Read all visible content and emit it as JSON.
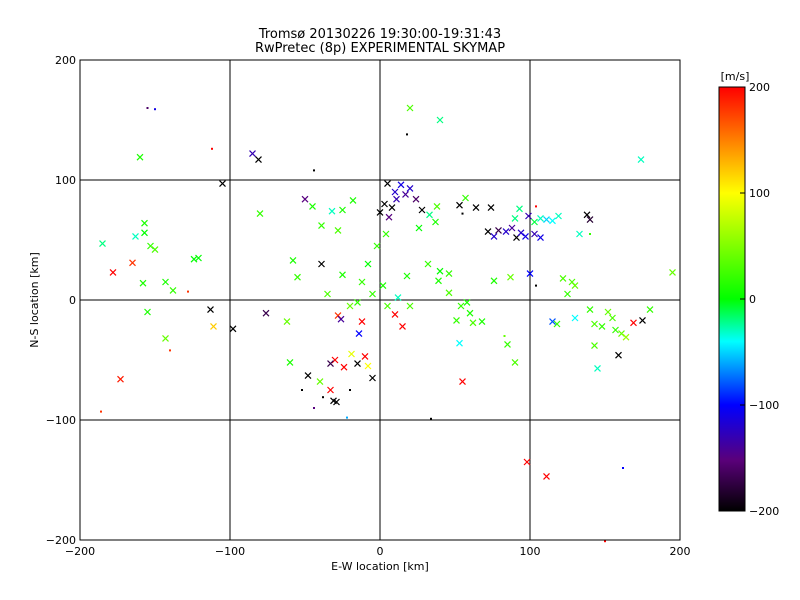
{
  "chart_data": {
    "type": "scatter",
    "title": "Tromsø 20130226 19:30:00-19:31:43",
    "subtitle": "RwPretec (8p) EXPERIMENTAL SKYMAP",
    "xlabel": "E-W location [km]",
    "ylabel": "N-S location [km]",
    "xlim": [
      -200,
      200
    ],
    "ylim": [
      -200,
      200
    ],
    "xticks": [
      -200,
      -100,
      0,
      100,
      200
    ],
    "yticks": [
      -200,
      -100,
      0,
      100,
      200
    ],
    "grid": [
      -100,
      0,
      100
    ],
    "colorbar": {
      "label": "[m/s]",
      "range": [
        -200,
        200
      ],
      "ticks": [
        -200,
        -100,
        0,
        100,
        200
      ],
      "colormap": "black-purple-blue-cyan-green-yellow-red"
    },
    "markers": [
      "cross",
      "dot"
    ],
    "points": [
      {
        "x": -185,
        "y": 47,
        "v": -20,
        "m": "x"
      },
      {
        "x": -178,
        "y": 23,
        "v": 200,
        "m": "x"
      },
      {
        "x": -173,
        "y": -66,
        "v": 190,
        "m": "x"
      },
      {
        "x": -186,
        "y": -93,
        "v": 180,
        "m": "."
      },
      {
        "x": -160,
        "y": 119,
        "v": 10,
        "m": "x"
      },
      {
        "x": -155,
        "y": 160,
        "v": -160,
        "m": "."
      },
      {
        "x": -150,
        "y": 159,
        "v": -110,
        "m": "."
      },
      {
        "x": -157,
        "y": 64,
        "v": 10,
        "m": "x"
      },
      {
        "x": -163,
        "y": 53,
        "v": -30,
        "m": "x"
      },
      {
        "x": -153,
        "y": 45,
        "v": 20,
        "m": "x"
      },
      {
        "x": -150,
        "y": 42,
        "v": 30,
        "m": "x"
      },
      {
        "x": -157,
        "y": 56,
        "v": 0,
        "m": "x"
      },
      {
        "x": -165,
        "y": 31,
        "v": 180,
        "m": "x"
      },
      {
        "x": -158,
        "y": 14,
        "v": 10,
        "m": "x"
      },
      {
        "x": -143,
        "y": 15,
        "v": 10,
        "m": "x"
      },
      {
        "x": -138,
        "y": 8,
        "v": 20,
        "m": "x"
      },
      {
        "x": -155,
        "y": -10,
        "v": 10,
        "m": "x"
      },
      {
        "x": -143,
        "y": -32,
        "v": 40,
        "m": "x"
      },
      {
        "x": -140,
        "y": -42,
        "v": 180,
        "m": "."
      },
      {
        "x": -128,
        "y": 7,
        "v": 180,
        "m": "."
      },
      {
        "x": -124,
        "y": 34,
        "v": 0,
        "m": "x"
      },
      {
        "x": -121,
        "y": 35,
        "v": 0,
        "m": "x"
      },
      {
        "x": -113,
        "y": -8,
        "v": -200,
        "m": "x"
      },
      {
        "x": -111,
        "y": -22,
        "v": 120,
        "m": "x"
      },
      {
        "x": -105,
        "y": 97,
        "v": -200,
        "m": "x"
      },
      {
        "x": -98,
        "y": -24,
        "v": -200,
        "m": "x"
      },
      {
        "x": -112,
        "y": 126,
        "v": 200,
        "m": "."
      },
      {
        "x": -85,
        "y": 122,
        "v": -130,
        "m": "x"
      },
      {
        "x": -81,
        "y": 117,
        "v": -200,
        "m": "x"
      },
      {
        "x": -80,
        "y": 72,
        "v": 20,
        "m": "x"
      },
      {
        "x": -76,
        "y": -11,
        "v": -170,
        "m": "x"
      },
      {
        "x": -62,
        "y": -18,
        "v": 40,
        "m": "x"
      },
      {
        "x": -60,
        "y": -52,
        "v": 10,
        "m": "x"
      },
      {
        "x": -58,
        "y": 33,
        "v": 10,
        "m": "x"
      },
      {
        "x": -55,
        "y": 19,
        "v": 20,
        "m": "x"
      },
      {
        "x": -50,
        "y": 84,
        "v": -150,
        "m": "x"
      },
      {
        "x": -44,
        "y": 108,
        "v": -200,
        "m": "."
      },
      {
        "x": -45,
        "y": 78,
        "v": 10,
        "m": "x"
      },
      {
        "x": -48,
        "y": -63,
        "v": -200,
        "m": "x"
      },
      {
        "x": -52,
        "y": -75,
        "v": -200,
        "m": "."
      },
      {
        "x": -40,
        "y": -68,
        "v": 40,
        "m": "x"
      },
      {
        "x": -33,
        "y": -75,
        "v": 200,
        "m": "x"
      },
      {
        "x": -31,
        "y": -84,
        "v": -200,
        "m": "x"
      },
      {
        "x": -29,
        "y": -85,
        "v": -200,
        "m": "x"
      },
      {
        "x": -38,
        "y": -81,
        "v": -200,
        "m": "."
      },
      {
        "x": -44,
        "y": -90,
        "v": -150,
        "m": "."
      },
      {
        "x": -22,
        "y": -98,
        "v": -60,
        "m": "."
      },
      {
        "x": -20,
        "y": -75,
        "v": -200,
        "m": "."
      },
      {
        "x": -39,
        "y": 30,
        "v": -200,
        "m": "x"
      },
      {
        "x": -39,
        "y": 62,
        "v": 20,
        "m": "x"
      },
      {
        "x": -32,
        "y": 74,
        "v": -30,
        "m": "x"
      },
      {
        "x": -28,
        "y": 58,
        "v": 30,
        "m": "x"
      },
      {
        "x": -25,
        "y": 75,
        "v": 10,
        "m": "x"
      },
      {
        "x": -18,
        "y": 83,
        "v": 10,
        "m": "x"
      },
      {
        "x": -25,
        "y": 21,
        "v": 10,
        "m": "x"
      },
      {
        "x": -35,
        "y": 5,
        "v": 30,
        "m": "x"
      },
      {
        "x": -28,
        "y": -13,
        "v": 180,
        "m": "x"
      },
      {
        "x": -26,
        "y": -16,
        "v": -140,
        "m": "x"
      },
      {
        "x": -30,
        "y": -50,
        "v": 200,
        "m": "x"
      },
      {
        "x": -33,
        "y": -53,
        "v": -170,
        "m": "x"
      },
      {
        "x": -24,
        "y": -56,
        "v": 200,
        "m": "x"
      },
      {
        "x": -19,
        "y": -45,
        "v": 90,
        "m": "x"
      },
      {
        "x": -15,
        "y": -53,
        "v": -200,
        "m": "x"
      },
      {
        "x": -10,
        "y": -47,
        "v": 200,
        "m": "x"
      },
      {
        "x": -14,
        "y": -28,
        "v": -100,
        "m": "x"
      },
      {
        "x": -12,
        "y": -18,
        "v": 200,
        "m": "x"
      },
      {
        "x": -20,
        "y": -5,
        "v": 40,
        "m": "x"
      },
      {
        "x": -8,
        "y": 30,
        "v": 0,
        "m": "x"
      },
      {
        "x": -2,
        "y": 45,
        "v": 20,
        "m": "x"
      },
      {
        "x": 4,
        "y": 55,
        "v": 20,
        "m": "x"
      },
      {
        "x": 6,
        "y": 69,
        "v": -150,
        "m": "x"
      },
      {
        "x": 0,
        "y": 73,
        "v": -200,
        "m": "x"
      },
      {
        "x": 3,
        "y": 80,
        "v": -200,
        "m": "x"
      },
      {
        "x": 8,
        "y": 77,
        "v": -200,
        "m": "x"
      },
      {
        "x": 5,
        "y": 97,
        "v": -200,
        "m": "x"
      },
      {
        "x": 10,
        "y": 90,
        "v": -120,
        "m": "x"
      },
      {
        "x": 14,
        "y": 96,
        "v": -110,
        "m": "x"
      },
      {
        "x": 17,
        "y": 88,
        "v": -140,
        "m": "x"
      },
      {
        "x": 20,
        "y": 93,
        "v": -120,
        "m": "x"
      },
      {
        "x": 24,
        "y": 84,
        "v": -160,
        "m": "x"
      },
      {
        "x": 11,
        "y": 84,
        "v": -130,
        "m": "x"
      },
      {
        "x": 20,
        "y": 160,
        "v": 30,
        "m": "x"
      },
      {
        "x": 18,
        "y": 138,
        "v": -200,
        "m": "."
      },
      {
        "x": 40,
        "y": 150,
        "v": -20,
        "m": "x"
      },
      {
        "x": 28,
        "y": 75,
        "v": -200,
        "m": "x"
      },
      {
        "x": 33,
        "y": 71,
        "v": -20,
        "m": "x"
      },
      {
        "x": 38,
        "y": 78,
        "v": 30,
        "m": "x"
      },
      {
        "x": 37,
        "y": 65,
        "v": 10,
        "m": "x"
      },
      {
        "x": 26,
        "y": 60,
        "v": 0,
        "m": "x"
      },
      {
        "x": 32,
        "y": 30,
        "v": 20,
        "m": "x"
      },
      {
        "x": 40,
        "y": 24,
        "v": 0,
        "m": "x"
      },
      {
        "x": 46,
        "y": 22,
        "v": 20,
        "m": "x"
      },
      {
        "x": 39,
        "y": 16,
        "v": 10,
        "m": "x"
      },
      {
        "x": 46,
        "y": 6,
        "v": 30,
        "m": "x"
      },
      {
        "x": 54,
        "y": -5,
        "v": 20,
        "m": "x"
      },
      {
        "x": 51,
        "y": -17,
        "v": 20,
        "m": "x"
      },
      {
        "x": 58,
        "y": -2,
        "v": 10,
        "m": "x"
      },
      {
        "x": 53,
        "y": -36,
        "v": -40,
        "m": "x"
      },
      {
        "x": 55,
        "y": -68,
        "v": 200,
        "m": "x"
      },
      {
        "x": 53,
        "y": 79,
        "v": -200,
        "m": "x"
      },
      {
        "x": 55,
        "y": 72,
        "v": -200,
        "m": "."
      },
      {
        "x": 57,
        "y": 85,
        "v": 20,
        "m": "x"
      },
      {
        "x": 64,
        "y": 77,
        "v": -200,
        "m": "x"
      },
      {
        "x": 60,
        "y": -11,
        "v": 10,
        "m": "x"
      },
      {
        "x": 62,
        "y": -19,
        "v": 30,
        "m": "x"
      },
      {
        "x": 68,
        "y": -18,
        "v": 10,
        "m": "x"
      },
      {
        "x": 72,
        "y": 57,
        "v": -200,
        "m": "x"
      },
      {
        "x": 76,
        "y": 53,
        "v": -120,
        "m": "x"
      },
      {
        "x": 79,
        "y": 58,
        "v": -170,
        "m": "x"
      },
      {
        "x": 74,
        "y": 77,
        "v": -200,
        "m": "x"
      },
      {
        "x": 84,
        "y": 57,
        "v": -120,
        "m": "x"
      },
      {
        "x": 88,
        "y": 60,
        "v": -140,
        "m": "x"
      },
      {
        "x": 91,
        "y": 52,
        "v": -200,
        "m": "x"
      },
      {
        "x": 94,
        "y": 56,
        "v": -120,
        "m": "x"
      },
      {
        "x": 97,
        "y": 53,
        "v": -110,
        "m": "x"
      },
      {
        "x": 90,
        "y": 68,
        "v": -20,
        "m": "x"
      },
      {
        "x": 93,
        "y": 76,
        "v": -20,
        "m": "x"
      },
      {
        "x": 99,
        "y": 70,
        "v": -130,
        "m": "x"
      },
      {
        "x": 103,
        "y": 65,
        "v": -10,
        "m": "x"
      },
      {
        "x": 107,
        "y": 68,
        "v": -30,
        "m": "x"
      },
      {
        "x": 111,
        "y": 67,
        "v": -50,
        "m": "x"
      },
      {
        "x": 115,
        "y": 66,
        "v": -40,
        "m": "x"
      },
      {
        "x": 119,
        "y": 70,
        "v": -30,
        "m": "x"
      },
      {
        "x": 104,
        "y": 78,
        "v": 200,
        "m": "."
      },
      {
        "x": 103,
        "y": 55,
        "v": -130,
        "m": "x"
      },
      {
        "x": 107,
        "y": 52,
        "v": -110,
        "m": "x"
      },
      {
        "x": 100,
        "y": 22,
        "v": -100,
        "m": "x"
      },
      {
        "x": 104,
        "y": 12,
        "v": -200,
        "m": "."
      },
      {
        "x": 87,
        "y": 19,
        "v": 40,
        "m": "x"
      },
      {
        "x": 76,
        "y": 16,
        "v": 10,
        "m": "x"
      },
      {
        "x": 83,
        "y": -30,
        "v": 40,
        "m": "."
      },
      {
        "x": 90,
        "y": -52,
        "v": 30,
        "m": "x"
      },
      {
        "x": 85,
        "y": -37,
        "v": 20,
        "m": "x"
      },
      {
        "x": 138,
        "y": 71,
        "v": -200,
        "m": "x"
      },
      {
        "x": 140,
        "y": 67,
        "v": -180,
        "m": "x"
      },
      {
        "x": 133,
        "y": 55,
        "v": -30,
        "m": "x"
      },
      {
        "x": 140,
        "y": 55,
        "v": 20,
        "m": "."
      },
      {
        "x": 122,
        "y": 18,
        "v": 30,
        "m": "x"
      },
      {
        "x": 128,
        "y": 15,
        "v": 30,
        "m": "x"
      },
      {
        "x": 130,
        "y": 12,
        "v": 40,
        "m": "x"
      },
      {
        "x": 125,
        "y": 5,
        "v": 20,
        "m": "x"
      },
      {
        "x": 115,
        "y": -18,
        "v": -80,
        "m": "x"
      },
      {
        "x": 118,
        "y": -20,
        "v": 20,
        "m": "x"
      },
      {
        "x": 130,
        "y": -15,
        "v": -40,
        "m": "x"
      },
      {
        "x": 140,
        "y": -8,
        "v": 20,
        "m": "x"
      },
      {
        "x": 143,
        "y": -20,
        "v": 30,
        "m": "x"
      },
      {
        "x": 148,
        "y": -22,
        "v": 20,
        "m": "x"
      },
      {
        "x": 152,
        "y": -10,
        "v": 40,
        "m": "x"
      },
      {
        "x": 155,
        "y": -15,
        "v": 30,
        "m": "x"
      },
      {
        "x": 157,
        "y": -25,
        "v": 20,
        "m": "x"
      },
      {
        "x": 161,
        "y": -28,
        "v": 40,
        "m": "x"
      },
      {
        "x": 164,
        "y": -31,
        "v": 60,
        "m": "x"
      },
      {
        "x": 169,
        "y": -19,
        "v": 200,
        "m": "x"
      },
      {
        "x": 175,
        "y": -17,
        "v": -200,
        "m": "x"
      },
      {
        "x": 180,
        "y": -8,
        "v": 20,
        "m": "x"
      },
      {
        "x": 143,
        "y": -38,
        "v": 30,
        "m": "x"
      },
      {
        "x": 145,
        "y": -57,
        "v": -30,
        "m": "x"
      },
      {
        "x": 159,
        "y": -46,
        "v": -200,
        "m": "x"
      },
      {
        "x": 174,
        "y": 117,
        "v": -30,
        "m": "x"
      },
      {
        "x": 195,
        "y": 23,
        "v": 40,
        "m": "x"
      },
      {
        "x": 98,
        "y": -135,
        "v": 200,
        "m": "x"
      },
      {
        "x": 111,
        "y": -147,
        "v": 200,
        "m": "x"
      },
      {
        "x": 162,
        "y": -140,
        "v": -100,
        "m": "."
      },
      {
        "x": 150,
        "y": -201,
        "v": 200,
        "m": "."
      },
      {
        "x": 34,
        "y": -99,
        "v": -200,
        "m": "."
      },
      {
        "x": -8,
        "y": -55,
        "v": 100,
        "m": "x"
      },
      {
        "x": -5,
        "y": -65,
        "v": -200,
        "m": "x"
      },
      {
        "x": 10,
        "y": -12,
        "v": 200,
        "m": "x"
      },
      {
        "x": 15,
        "y": -22,
        "v": 200,
        "m": "x"
      },
      {
        "x": 12,
        "y": 2,
        "v": -30,
        "m": "x"
      },
      {
        "x": -5,
        "y": 5,
        "v": 20,
        "m": "x"
      },
      {
        "x": 5,
        "y": -5,
        "v": 30,
        "m": "x"
      },
      {
        "x": 2,
        "y": 12,
        "v": 10,
        "m": "x"
      },
      {
        "x": -12,
        "y": 15,
        "v": 20,
        "m": "x"
      },
      {
        "x": 18,
        "y": 20,
        "v": 10,
        "m": "x"
      },
      {
        "x": 20,
        "y": -5,
        "v": 30,
        "m": "x"
      },
      {
        "x": -15,
        "y": -2,
        "v": 20,
        "m": "x"
      }
    ]
  }
}
